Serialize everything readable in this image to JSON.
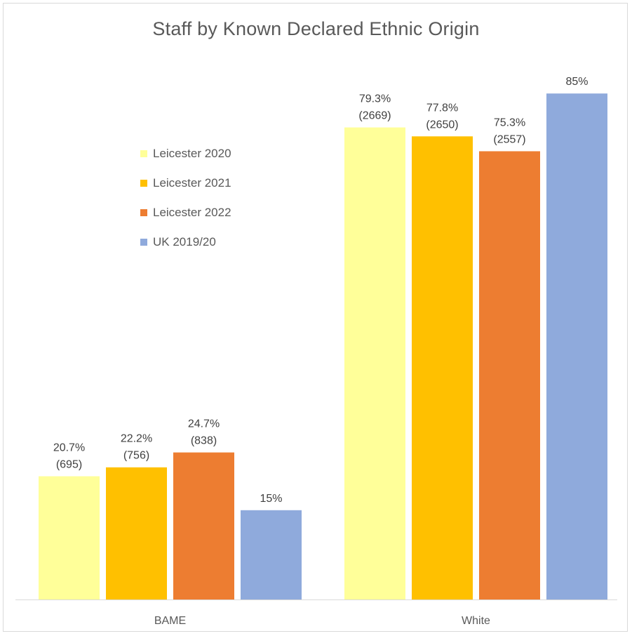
{
  "chart_data": {
    "type": "bar",
    "title": "Staff by Known Declared Ethnic Origin",
    "categories": [
      "BAME",
      "White"
    ],
    "series": [
      {
        "name": "Leicester 2020",
        "color": "#ffff99",
        "values": [
          20.7,
          79.3
        ],
        "labels": [
          [
            "20.7%",
            "(695)"
          ],
          [
            "79.3%",
            "(2669)"
          ]
        ]
      },
      {
        "name": "Leicester 2021",
        "color": "#ffc000",
        "values": [
          22.2,
          77.8
        ],
        "labels": [
          [
            "22.2%",
            "(756)"
          ],
          [
            "77.8%",
            "(2650)"
          ]
        ]
      },
      {
        "name": "Leicester 2022",
        "color": "#ed7d31",
        "values": [
          24.7,
          75.3
        ],
        "labels": [
          [
            "24.7%",
            "(838)"
          ],
          [
            "75.3%",
            "(2557)"
          ]
        ]
      },
      {
        "name": "UK 2019/20",
        "color": "#8faadc",
        "values": [
          15,
          85
        ],
        "labels": [
          [
            "15%"
          ],
          [
            "85%"
          ]
        ]
      }
    ],
    "ylim": [
      0,
      100
    ],
    "grid": false,
    "legend_position": "left-inside"
  }
}
